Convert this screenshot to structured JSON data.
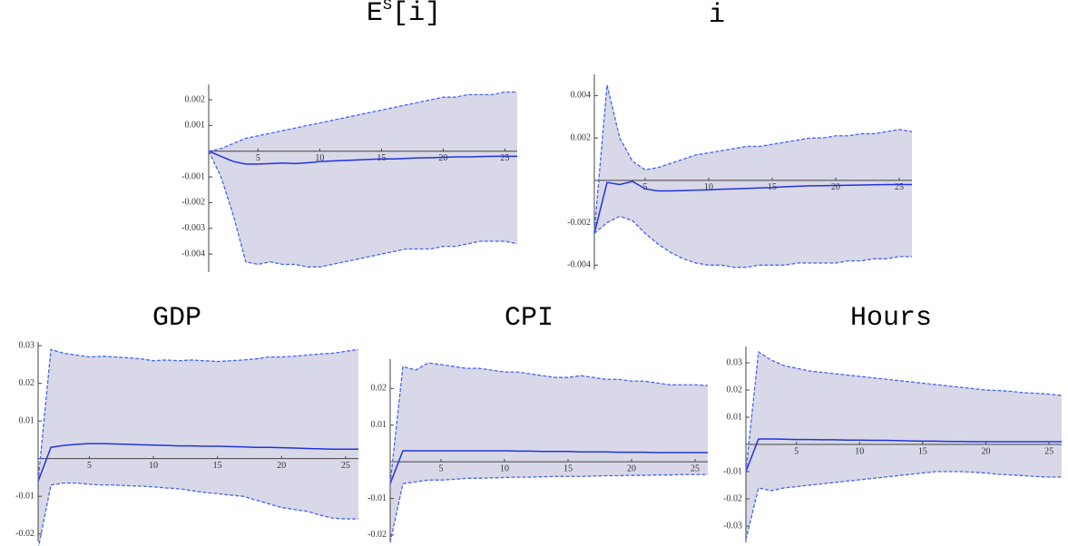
{
  "chart_data": [
    {
      "type": "line",
      "title": "E",
      "title_superscript": "S",
      "title_suffix": "[i]",
      "x": [
        1,
        2,
        3,
        4,
        5,
        6,
        7,
        8,
        9,
        10,
        11,
        12,
        13,
        14,
        15,
        16,
        17,
        18,
        19,
        20,
        21,
        22,
        23,
        24,
        25,
        26
      ],
      "xlim": [
        1,
        26
      ],
      "xticks": [
        5,
        10,
        15,
        20,
        25
      ],
      "ylim": [
        -0.0047,
        0.0026
      ],
      "yticks": [
        0.002,
        0.001,
        -0.001,
        -0.002,
        -0.003,
        -0.004
      ],
      "band_color": "#d8d8e8",
      "series": [
        {
          "color": "#2233dd",
          "dashed": false,
          "values": [
            0,
            -0.0002,
            -0.0004,
            -0.0005,
            -0.0005,
            -0.00048,
            -0.00046,
            -0.00048,
            -0.00045,
            -0.0004,
            -0.00038,
            -0.00036,
            -0.00034,
            -0.00032,
            -0.0003,
            -0.0003,
            -0.00028,
            -0.00026,
            -0.00025,
            -0.00024,
            -0.00022,
            -0.00022,
            -0.00021,
            -0.0002,
            -0.0002,
            -0.0002
          ]
        },
        {
          "color": "#4466ee",
          "dashed": true,
          "values": [
            0,
            0.0001,
            0.0003,
            0.0005,
            0.0006,
            0.0007,
            0.0008,
            0.0009,
            0.001,
            0.0011,
            0.0012,
            0.0013,
            0.0014,
            0.0015,
            0.0016,
            0.0017,
            0.0018,
            0.0019,
            0.002,
            0.0021,
            0.0021,
            0.0022,
            0.0022,
            0.0022,
            0.0023,
            0.0023
          ]
        },
        {
          "color": "#4466ee",
          "dashed": true,
          "values": [
            0,
            -0.001,
            -0.0025,
            -0.0043,
            -0.0044,
            -0.0043,
            -0.0044,
            -0.0044,
            -0.0045,
            -0.0045,
            -0.0044,
            -0.0043,
            -0.0042,
            -0.0041,
            -0.004,
            -0.0039,
            -0.0038,
            -0.0038,
            -0.0038,
            -0.0037,
            -0.0037,
            -0.0036,
            -0.0035,
            -0.0035,
            -0.0035,
            -0.0036
          ]
        }
      ]
    },
    {
      "type": "line",
      "title": "i",
      "x": [
        1,
        2,
        3,
        4,
        5,
        6,
        7,
        8,
        9,
        10,
        11,
        12,
        13,
        14,
        15,
        16,
        17,
        18,
        19,
        20,
        21,
        22,
        23,
        24,
        25,
        26
      ],
      "xlim": [
        1,
        26
      ],
      "xticks": [
        5,
        10,
        15,
        20,
        25
      ],
      "ylim": [
        -0.0042,
        0.005
      ],
      "yticks": [
        0.004,
        0.002,
        -0.002,
        -0.004
      ],
      "band_color": "#d8d8e8",
      "series": [
        {
          "color": "#2233dd",
          "dashed": false,
          "values": [
            -0.0025,
            -0.0001,
            -0.0002,
            -5e-05,
            -0.0004,
            -0.0005,
            -0.0005,
            -0.00048,
            -0.00046,
            -0.00045,
            -0.00042,
            -0.0004,
            -0.00038,
            -0.00036,
            -0.00034,
            -0.0003,
            -0.00028,
            -0.00026,
            -0.00025,
            -0.00024,
            -0.00023,
            -0.00022,
            -0.00021,
            -0.0002,
            -0.0002,
            -0.0002
          ]
        },
        {
          "color": "#4466ee",
          "dashed": true,
          "values": [
            -0.0024,
            0.0045,
            0.002,
            0.0009,
            0.0005,
            0.0006,
            0.0008,
            0.001,
            0.0012,
            0.0013,
            0.0014,
            0.0015,
            0.0016,
            0.0016,
            0.0017,
            0.0018,
            0.0019,
            0.002,
            0.002,
            0.0021,
            0.0021,
            0.0022,
            0.0022,
            0.0023,
            0.0024,
            0.0023
          ]
        },
        {
          "color": "#4466ee",
          "dashed": true,
          "values": [
            -0.0025,
            -0.002,
            -0.0017,
            -0.0019,
            -0.0025,
            -0.003,
            -0.0034,
            -0.0037,
            -0.0039,
            -0.004,
            -0.004,
            -0.0041,
            -0.0041,
            -0.004,
            -0.004,
            -0.004,
            -0.0039,
            -0.0039,
            -0.0039,
            -0.0039,
            -0.0038,
            -0.0038,
            -0.0037,
            -0.0037,
            -0.0036,
            -0.0036
          ]
        }
      ]
    },
    {
      "type": "line",
      "title": "GDP",
      "x": [
        1,
        2,
        3,
        4,
        5,
        6,
        7,
        8,
        9,
        10,
        11,
        12,
        13,
        14,
        15,
        16,
        17,
        18,
        19,
        20,
        21,
        22,
        23,
        24,
        25,
        26
      ],
      "xlim": [
        1,
        26
      ],
      "xticks": [
        5,
        10,
        15,
        20,
        25
      ],
      "ylim": [
        -0.022,
        0.031
      ],
      "yticks": [
        0.03,
        0.02,
        0.01,
        -0.01,
        -0.02
      ],
      "band_color": "#d8d8e8",
      "series": [
        {
          "color": "#2233dd",
          "dashed": false,
          "values": [
            -0.006,
            0.003,
            0.0035,
            0.0038,
            0.004,
            0.004,
            0.0039,
            0.0038,
            0.0037,
            0.0036,
            0.0035,
            0.0034,
            0.0034,
            0.0033,
            0.0033,
            0.0032,
            0.0031,
            0.003,
            0.003,
            0.0029,
            0.0028,
            0.0027,
            0.0026,
            0.0025,
            0.0025,
            0.0025
          ]
        },
        {
          "color": "#4466ee",
          "dashed": true,
          "values": [
            -0.006,
            0.029,
            0.028,
            0.0275,
            0.027,
            0.0272,
            0.027,
            0.0268,
            0.0265,
            0.026,
            0.0262,
            0.026,
            0.0262,
            0.026,
            0.0258,
            0.026,
            0.0262,
            0.0265,
            0.027,
            0.027,
            0.0272,
            0.0275,
            0.0278,
            0.028,
            0.0285,
            0.029
          ]
        },
        {
          "color": "#4466ee",
          "dashed": true,
          "values": [
            -0.024,
            -0.007,
            -0.0065,
            -0.0065,
            -0.0068,
            -0.007,
            -0.007,
            -0.0072,
            -0.0073,
            -0.0075,
            -0.0078,
            -0.008,
            -0.0085,
            -0.009,
            -0.0093,
            -0.0097,
            -0.01,
            -0.011,
            -0.012,
            -0.013,
            -0.0135,
            -0.014,
            -0.015,
            -0.0158,
            -0.016,
            -0.016
          ]
        }
      ]
    },
    {
      "type": "line",
      "title": "CPI",
      "x": [
        1,
        2,
        3,
        4,
        5,
        6,
        7,
        8,
        9,
        10,
        11,
        12,
        13,
        14,
        15,
        16,
        17,
        18,
        19,
        20,
        21,
        22,
        23,
        24,
        25,
        26
      ],
      "xlim": [
        1,
        26
      ],
      "xticks": [
        5,
        10,
        15,
        20,
        25
      ],
      "ylim": [
        -0.022,
        0.028
      ],
      "yticks": [
        0.02,
        0.01,
        -0.01,
        -0.02
      ],
      "band_color": "#d8d8e8",
      "series": [
        {
          "color": "#2233dd",
          "dashed": false,
          "values": [
            -0.006,
            0.003,
            0.003,
            0.003,
            0.003,
            0.003,
            0.003,
            0.003,
            0.003,
            0.003,
            0.0029,
            0.0029,
            0.0028,
            0.0028,
            0.0028,
            0.0027,
            0.0027,
            0.0027,
            0.0026,
            0.0026,
            0.0026,
            0.0025,
            0.0025,
            0.0025,
            0.0025,
            0.0025
          ]
        },
        {
          "color": "#4466ee",
          "dashed": true,
          "values": [
            -0.006,
            0.026,
            0.025,
            0.027,
            0.0265,
            0.026,
            0.0255,
            0.0255,
            0.025,
            0.0245,
            0.0245,
            0.024,
            0.0235,
            0.023,
            0.023,
            0.0235,
            0.023,
            0.0225,
            0.0225,
            0.022,
            0.022,
            0.0215,
            0.021,
            0.021,
            0.021,
            0.0208
          ]
        },
        {
          "color": "#4466ee",
          "dashed": true,
          "values": [
            -0.022,
            -0.006,
            -0.0055,
            -0.005,
            -0.005,
            -0.0048,
            -0.0045,
            -0.0045,
            -0.0044,
            -0.0043,
            -0.0042,
            -0.0042,
            -0.0041,
            -0.004,
            -0.004,
            -0.004,
            -0.0039,
            -0.0038,
            -0.0038,
            -0.0037,
            -0.0037,
            -0.0036,
            -0.0036,
            -0.0035,
            -0.0035,
            -0.0035
          ]
        }
      ]
    },
    {
      "type": "line",
      "title": "Hours",
      "x": [
        1,
        2,
        3,
        4,
        5,
        6,
        7,
        8,
        9,
        10,
        11,
        12,
        13,
        14,
        15,
        16,
        17,
        18,
        19,
        20,
        21,
        22,
        23,
        24,
        25,
        26
      ],
      "xlim": [
        1,
        26
      ],
      "xticks": [
        5,
        10,
        15,
        20,
        25
      ],
      "ylim": [
        -0.036,
        0.036
      ],
      "yticks": [
        0.03,
        0.02,
        0.01,
        -0.01,
        -0.02,
        -0.03
      ],
      "band_color": "#d8d8e8",
      "series": [
        {
          "color": "#2233dd",
          "dashed": false,
          "values": [
            -0.01,
            0.002,
            0.002,
            0.0019,
            0.0018,
            0.0018,
            0.0017,
            0.0017,
            0.0016,
            0.0016,
            0.0015,
            0.0015,
            0.0014,
            0.0013,
            0.0012,
            0.0012,
            0.0011,
            0.0011,
            0.001,
            0.001,
            0.001,
            0.001,
            0.001,
            0.001,
            0.001,
            0.001
          ]
        },
        {
          "color": "#4466ee",
          "dashed": true,
          "values": [
            -0.01,
            0.034,
            0.031,
            0.029,
            0.028,
            0.027,
            0.0265,
            0.026,
            0.0255,
            0.025,
            0.0245,
            0.024,
            0.0235,
            0.023,
            0.0225,
            0.022,
            0.0215,
            0.021,
            0.0205,
            0.02,
            0.0198,
            0.0195,
            0.019,
            0.0188,
            0.0185,
            0.018
          ]
        },
        {
          "color": "#4466ee",
          "dashed": true,
          "values": [
            -0.035,
            -0.016,
            -0.017,
            -0.016,
            -0.0155,
            -0.015,
            -0.0145,
            -0.014,
            -0.0135,
            -0.013,
            -0.0125,
            -0.012,
            -0.0115,
            -0.011,
            -0.0105,
            -0.01,
            -0.01,
            -0.01,
            -0.0102,
            -0.0105,
            -0.011,
            -0.0112,
            -0.0115,
            -0.0118,
            -0.012,
            -0.012
          ]
        }
      ]
    }
  ]
}
